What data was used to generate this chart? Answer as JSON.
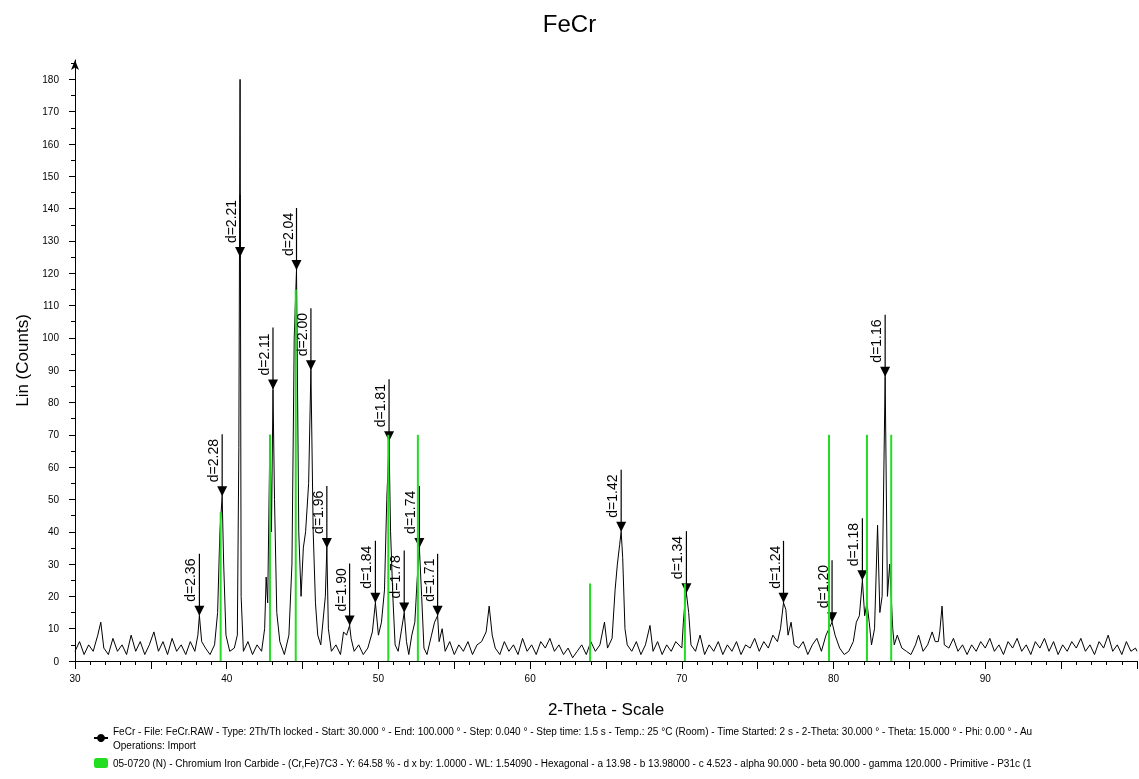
{
  "chart_data": {
    "type": "line",
    "title": "FeCr",
    "xlabel": "2-Theta - Scale",
    "ylabel": "Lin (Counts)",
    "xlim": [
      30,
      100
    ],
    "xticks": [
      30,
      {
        "value": 35,
        "label": null
      },
      40,
      {
        "value": 45,
        "label": null
      },
      50,
      {
        "value": 55,
        "label": null
      },
      60,
      {
        "value": 65,
        "label": null
      },
      70,
      {
        "value": 75,
        "label": null
      },
      80,
      {
        "value": 85,
        "label": null
      },
      90,
      {
        "value": 95,
        "label": null
      },
      {
        "value": 100,
        "label": null
      }
    ],
    "ylim": [
      0,
      186
    ],
    "yticks": [
      0,
      10,
      20,
      30,
      40,
      50,
      60,
      70,
      80,
      90,
      100,
      110,
      120,
      130,
      140,
      150,
      160,
      170,
      180
    ],
    "grid": false,
    "legend": "bottom",
    "marker": "none",
    "line_style": "solid",
    "series": [
      {
        "name": "FeCr - File: FeCr.RAW - Type: 2Th/Th locked - Start: 30.000 ° - End: 100.000 ° - Step: 0.040 ° - Step time: 1.5 s - Temp.: 25 °C (Room) - Time Started: 2 s - 2-Theta: 30.000 ° - Theta: 15.000 ° - Phi: 0.00 ° - Au",
        "color": "#000000",
        "x": [
          30.0,
          30.3,
          30.6,
          30.9,
          31.2,
          31.5,
          31.7,
          31.9,
          32.2,
          32.5,
          32.8,
          33.1,
          33.4,
          33.7,
          34.0,
          34.3,
          34.6,
          34.9,
          35.2,
          35.5,
          35.8,
          36.1,
          36.4,
          36.7,
          37.0,
          37.3,
          37.6,
          37.9,
          38.1,
          38.2,
          38.35,
          38.6,
          38.9,
          39.2,
          39.4,
          39.55,
          39.7,
          39.8,
          39.95,
          40.2,
          40.5,
          40.7,
          40.8,
          40.88,
          40.95,
          41.1,
          41.4,
          41.7,
          42.0,
          42.3,
          42.5,
          42.6,
          42.7,
          42.85,
          42.95,
          43.05,
          43.15,
          43.3,
          43.5,
          43.8,
          44.1,
          44.3,
          44.45,
          44.6,
          44.75,
          44.9,
          45.05,
          45.2,
          45.4,
          45.55,
          45.7,
          45.85,
          46.0,
          46.2,
          46.5,
          46.6,
          46.7,
          46.9,
          47.2,
          47.5,
          47.7,
          47.9,
          48.1,
          48.2,
          48.4,
          48.7,
          49.0,
          49.3,
          49.6,
          49.8,
          50.0,
          50.2,
          50.4,
          50.55,
          50.7,
          50.8,
          50.95,
          51.1,
          51.3,
          51.5,
          51.7,
          51.85,
          52.0,
          52.2,
          52.4,
          52.55,
          52.7,
          52.85,
          53.0,
          53.2,
          53.5,
          53.7,
          53.9,
          54.0,
          54.2,
          54.4,
          54.7,
          55.0,
          55.3,
          55.6,
          55.9,
          56.2,
          56.5,
          56.8,
          57.1,
          57.3,
          57.5,
          57.7,
          58.0,
          58.3,
          58.6,
          58.9,
          59.2,
          59.5,
          59.8,
          60.1,
          60.4,
          60.7,
          61.0,
          61.3,
          61.6,
          61.9,
          62.2,
          62.5,
          62.8,
          63.1,
          63.4,
          63.7,
          64.0,
          64.3,
          64.6,
          64.9,
          65.1,
          65.4,
          65.6,
          65.75,
          65.9,
          66.0,
          66.1,
          66.25,
          66.4,
          66.7,
          67.0,
          67.3,
          67.6,
          67.9,
          68.1,
          68.4,
          68.7,
          69.0,
          69.3,
          69.6,
          70.0,
          70.1,
          70.2,
          70.3,
          70.45,
          70.6,
          70.9,
          71.2,
          71.5,
          71.8,
          72.1,
          72.4,
          72.7,
          73.0,
          73.3,
          73.6,
          73.9,
          74.2,
          74.5,
          74.8,
          75.1,
          75.4,
          75.7,
          76.0,
          76.3,
          76.5,
          76.7,
          76.85,
          77.0,
          77.2,
          77.4,
          77.7,
          78.0,
          78.3,
          78.6,
          78.9,
          79.2,
          79.5,
          79.7,
          79.9,
          80.1,
          80.4,
          80.7,
          81.0,
          81.3,
          81.5,
          81.7,
          81.9,
          82.05,
          82.2,
          82.35,
          82.5,
          82.7,
          82.9,
          83.05,
          83.2,
          83.4,
          83.55,
          83.7,
          83.9,
          84.0,
          84.2,
          84.5,
          84.8,
          85.1,
          85.4,
          85.6,
          85.9,
          86.2,
          86.5,
          86.7,
          86.9,
          87.0,
          87.15,
          87.3,
          87.6,
          87.9,
          88.2,
          88.5,
          88.8,
          89.1,
          89.4,
          89.7,
          90.0,
          90.3,
          90.6,
          90.9,
          91.2,
          91.5,
          91.8,
          92.1,
          92.4,
          92.7,
          93.0,
          93.3,
          93.6,
          93.9,
          94.2,
          94.5,
          94.8,
          95.1,
          95.4,
          95.7,
          96.0,
          96.3,
          96.6,
          96.9,
          97.2,
          97.5,
          97.8,
          98.1,
          98.4,
          98.7,
          99.0,
          99.3,
          99.6,
          99.9,
          100
        ],
        "values": [
          3,
          6,
          2,
          5,
          3,
          8,
          12,
          4,
          2,
          7,
          3,
          5,
          2,
          8,
          3,
          6,
          2,
          5,
          9,
          3,
          6,
          2,
          7,
          3,
          5,
          2,
          6,
          3,
          8,
          14,
          6,
          4,
          2,
          5,
          15,
          40,
          51,
          30,
          8,
          3,
          4,
          8,
          66,
          180,
          20,
          3,
          6,
          2,
          5,
          3,
          10,
          26,
          18,
          70,
          40,
          84,
          50,
          15,
          6,
          2,
          8,
          30,
          100,
          121,
          40,
          20,
          35,
          40,
          55,
          90,
          40,
          18,
          8,
          5,
          20,
          35,
          10,
          3,
          5,
          2,
          9,
          8,
          11,
          7,
          3,
          5,
          2,
          4,
          9,
          18,
          8,
          12,
          22,
          50,
          68,
          40,
          20,
          5,
          3,
          9,
          15,
          6,
          2,
          8,
          12,
          25,
          35,
          20,
          4,
          2,
          8,
          12,
          14,
          6,
          10,
          3,
          6,
          2,
          5,
          3,
          6,
          2,
          5,
          6,
          9,
          17,
          8,
          4,
          2,
          6,
          3,
          5,
          2,
          7,
          3,
          5,
          2,
          6,
          4,
          7,
          3,
          5,
          2,
          4,
          1,
          3,
          5,
          2,
          6,
          3,
          5,
          12,
          4,
          7,
          22,
          30,
          36,
          40,
          32,
          10,
          5,
          3,
          6,
          2,
          5,
          11,
          3,
          6,
          2,
          5,
          3,
          6,
          4,
          12,
          18,
          21,
          15,
          5,
          3,
          8,
          2,
          5,
          3,
          6,
          2,
          5,
          3,
          6,
          2,
          5,
          4,
          7,
          3,
          6,
          4,
          8,
          6,
          10,
          18,
          16,
          8,
          12,
          5,
          4,
          6,
          2,
          5,
          7,
          3,
          8,
          10,
          12,
          8,
          4,
          2,
          3,
          6,
          12,
          14,
          25,
          14,
          18,
          12,
          5,
          10,
          42,
          15,
          20,
          88,
          20,
          30,
          10,
          5,
          8,
          4,
          3,
          2,
          5,
          8,
          3,
          5,
          9,
          6,
          6,
          9,
          17,
          5,
          4,
          7,
          3,
          5,
          2,
          5,
          3,
          6,
          4,
          7,
          3,
          5,
          2,
          6,
          4,
          7,
          3,
          5,
          2,
          6,
          4,
          7,
          3,
          6,
          2,
          5,
          3,
          6,
          4,
          7,
          3,
          5,
          2,
          6,
          4,
          8,
          3,
          5,
          2,
          6,
          3,
          4,
          3
        ]
      },
      {
        "name": "05-0720 (N) - Chromium Iron Carbide - (Cr,Fe)7C3 - Y: 64.58 % - d x by: 1.0000 - WL: 1.54090 - Hexagonal - a 13.98 - b 13.98000 - c 4.523 - alpha 90.000 - beta 90.000 - gamma 120.000 - Primitive - P31c (1",
        "type": "bar",
        "color": "#22dd22",
        "x": [
          39.6,
          42.85,
          44.55,
          50.65,
          52.6,
          63.95,
          70.2,
          79.7,
          82.2,
          83.8
        ],
        "values": [
          46,
          70,
          115,
          70,
          70,
          24,
          24,
          70,
          70,
          70
        ]
      }
    ],
    "annotations": [
      {
        "text": "d=2.36",
        "x": 38.2,
        "y": 14
      },
      {
        "text": "d=2.28",
        "x": 39.7,
        "y": 51
      },
      {
        "text": "d=2.21",
        "x": 40.88,
        "y": 125
      },
      {
        "text": "d=2.11",
        "x": 43.05,
        "y": 84
      },
      {
        "text": "d=2.04",
        "x": 44.6,
        "y": 121
      },
      {
        "text": "d=2.00",
        "x": 45.55,
        "y": 90
      },
      {
        "text": "d=1.96",
        "x": 46.6,
        "y": 35
      },
      {
        "text": "d=1.90",
        "x": 48.1,
        "y": 11
      },
      {
        "text": "d=1.84",
        "x": 49.8,
        "y": 18
      },
      {
        "text": "d=1.81",
        "x": 50.7,
        "y": 68
      },
      {
        "text": "d=1.78",
        "x": 51.7,
        "y": 15
      },
      {
        "text": "d=1.74",
        "x": 52.7,
        "y": 35
      },
      {
        "text": "d=1.71",
        "x": 53.9,
        "y": 14
      },
      {
        "text": "d=1.42",
        "x": 66.0,
        "y": 40
      },
      {
        "text": "d=1.34",
        "x": 70.3,
        "y": 21
      },
      {
        "text": "d=1.24",
        "x": 76.7,
        "y": 18
      },
      {
        "text": "d=1.20",
        "x": 79.9,
        "y": 12
      },
      {
        "text": "d=1.18",
        "x": 81.9,
        "y": 25
      },
      {
        "text": "d=1.16",
        "x": 83.4,
        "y": 88
      },
      "Operations: Import"
    ]
  }
}
